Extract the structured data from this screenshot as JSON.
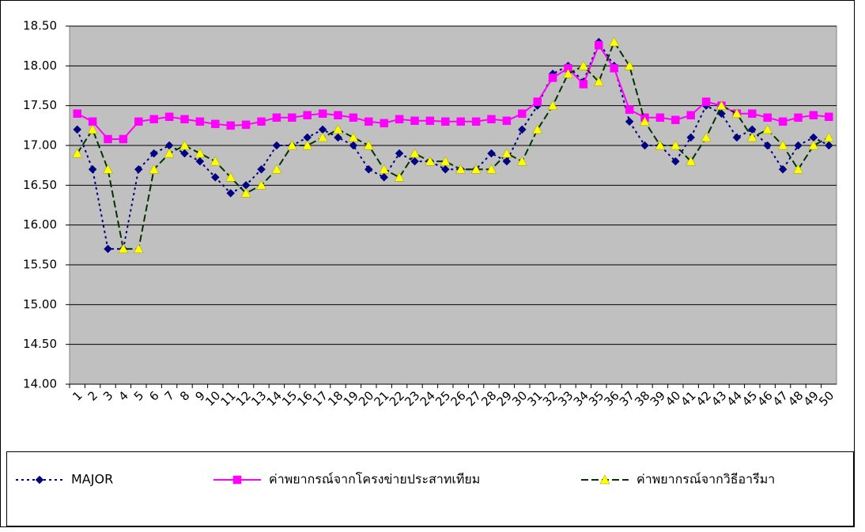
{
  "chart_data": {
    "type": "line",
    "categories": [
      1,
      2,
      3,
      4,
      5,
      6,
      7,
      8,
      9,
      10,
      11,
      12,
      13,
      14,
      15,
      16,
      17,
      18,
      19,
      20,
      21,
      22,
      23,
      24,
      25,
      26,
      27,
      28,
      29,
      30,
      31,
      32,
      33,
      34,
      35,
      36,
      37,
      38,
      39,
      40,
      41,
      42,
      43,
      44,
      45,
      46,
      47,
      48,
      49,
      50
    ],
    "ylim": [
      14,
      18.5
    ],
    "yticks": [
      {
        "value": 14,
        "label": "14.00"
      },
      {
        "value": 14.5,
        "label": "14.50"
      },
      {
        "value": 15,
        "label": "15.00"
      },
      {
        "value": 15.5,
        "label": "15.50"
      },
      {
        "value": 16,
        "label": "16.00"
      },
      {
        "value": 16.5,
        "label": "16.50"
      },
      {
        "value": 17,
        "label": "17.00"
      },
      {
        "value": 17.5,
        "label": "17.50"
      },
      {
        "value": 18,
        "label": "18.00"
      },
      {
        "value": 18.5,
        "label": "18.50"
      }
    ],
    "grid": true,
    "plot_background": "#c0c0c0",
    "legend": "bottom",
    "series": [
      {
        "name": "MAJOR",
        "color": "#000080",
        "marker": "diamond",
        "marker_color": "#000080",
        "dash": "3,4",
        "values": [
          17.2,
          16.7,
          15.7,
          15.7,
          16.7,
          16.9,
          17.0,
          16.9,
          16.8,
          16.6,
          16.4,
          16.5,
          16.7,
          17.0,
          17.0,
          17.1,
          17.2,
          17.1,
          17.0,
          16.7,
          16.6,
          16.9,
          16.8,
          16.8,
          16.7,
          16.7,
          16.7,
          16.9,
          16.8,
          17.2,
          17.5,
          17.9,
          18.0,
          17.8,
          18.3,
          18.0,
          17.3,
          17.0,
          17.0,
          16.8,
          17.1,
          17.5,
          17.4,
          17.1,
          17.2,
          17.0,
          16.7,
          17.0,
          17.1,
          17.0
        ]
      },
      {
        "name": "ค่าพยากรณ์จากโครงข่ายประสาทเทียม",
        "color": "#ff00ff",
        "marker": "square",
        "marker_color": "#ff00ff",
        "dash": "none",
        "values": [
          17.4,
          17.3,
          17.08,
          17.08,
          17.3,
          17.33,
          17.36,
          17.33,
          17.3,
          17.27,
          17.25,
          17.26,
          17.3,
          17.35,
          17.35,
          17.38,
          17.4,
          17.38,
          17.35,
          17.3,
          17.28,
          17.33,
          17.31,
          17.31,
          17.3,
          17.3,
          17.3,
          17.33,
          17.31,
          17.4,
          17.55,
          17.85,
          17.97,
          17.77,
          18.26,
          17.97,
          17.45,
          17.35,
          17.35,
          17.32,
          17.38,
          17.55,
          17.5,
          17.4,
          17.4,
          17.35,
          17.3,
          17.35,
          17.38,
          17.36
        ]
      },
      {
        "name": "ค่าพยากรณ์จากวิธีอารีมา",
        "color": "#003300",
        "marker": "triangle",
        "marker_color": "#ffff00",
        "dash": "9,4",
        "values": [
          16.9,
          17.2,
          16.7,
          15.7,
          15.7,
          16.7,
          16.9,
          17.0,
          16.9,
          16.8,
          16.6,
          16.4,
          16.5,
          16.7,
          17.0,
          17.0,
          17.1,
          17.2,
          17.1,
          17.0,
          16.7,
          16.6,
          16.9,
          16.8,
          16.8,
          16.7,
          16.7,
          16.7,
          16.9,
          16.8,
          17.2,
          17.5,
          17.9,
          18.0,
          17.8,
          18.3,
          18.0,
          17.3,
          17.0,
          17.0,
          16.8,
          17.1,
          17.5,
          17.4,
          17.1,
          17.2,
          17.0,
          16.7,
          17.0,
          17.1
        ]
      }
    ]
  }
}
